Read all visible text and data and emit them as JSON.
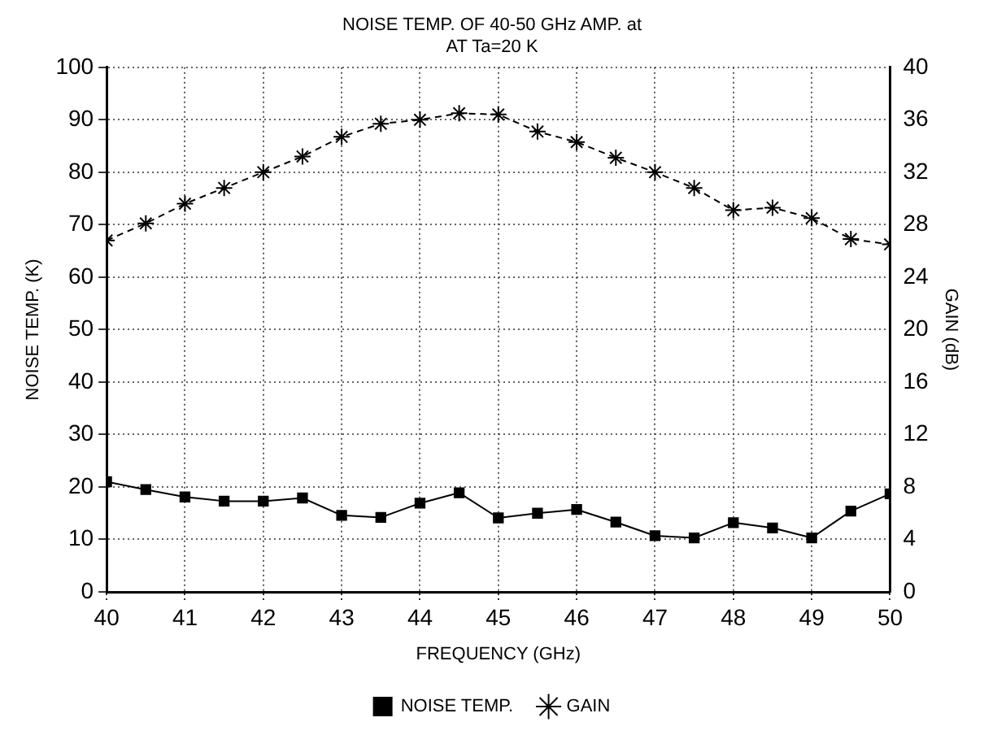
{
  "chart_data": {
    "type": "line",
    "title": "NOISE TEMP. OF 40-50 GHz AMP. at\nAT Ta=20 K",
    "xlabel": "FREQUENCY (GHz)",
    "ylabel": "NOISE TEMP. (K)",
    "y2label": "GAIN (dB)",
    "x": [
      40,
      40.5,
      41,
      41.5,
      42,
      42.5,
      43,
      43.5,
      44,
      44.5,
      45,
      45.5,
      46,
      46.5,
      47,
      47.5,
      48,
      48.5,
      49,
      49.5,
      50
    ],
    "series": [
      {
        "name": "NOISE TEMP.",
        "color": "#000000",
        "marker": "square",
        "line_style": "solid",
        "values": [
          21,
          19.5,
          18.1,
          17.3,
          17.3,
          17.9,
          14.6,
          14.2,
          16.9,
          18.9,
          14.1,
          15,
          15.7,
          13.3,
          10.7,
          10.3,
          13.2,
          12.2,
          10.3,
          15.4,
          18.7
        ]
      },
      {
        "name": "GAIN",
        "color": "#000000",
        "marker": "cross",
        "line_style": "dashed",
        "axis": "y2",
        "values": [
          26.8,
          28.1,
          29.6,
          30.8,
          32,
          33.2,
          34.7,
          35.7,
          36,
          36.5,
          36.4,
          35.1,
          34.3,
          33.1,
          32,
          30.8,
          29.1,
          29.3,
          28.5,
          26.9,
          26.5
        ]
      }
    ],
    "xlim": [
      40,
      50
    ],
    "xticks": [
      40,
      41,
      42,
      43,
      44,
      45,
      46,
      47,
      48,
      49,
      50
    ],
    "ylim": [
      0,
      100
    ],
    "yticks": [
      0,
      10,
      20,
      30,
      40,
      50,
      60,
      70,
      80,
      90,
      100
    ],
    "y2lim": [
      0,
      40
    ],
    "y2ticks": [
      0,
      4,
      8,
      12,
      16,
      20,
      24,
      28,
      32,
      36,
      40
    ],
    "grid": true,
    "legend": "bottom"
  }
}
